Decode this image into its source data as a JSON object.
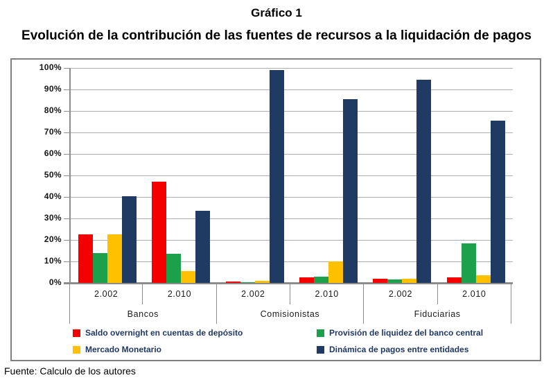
{
  "title": "Gráfico 1",
  "subtitle": "Evolución de la contribución de las fuentes de recursos a la liquidación de pagos",
  "source": "Fuente: Calculo de los autores",
  "colors": {
    "legend_text": "#1F3864",
    "grid": "#AEAEAE",
    "axis": "#8C8C8C",
    "frame_border": "#7F7F7F"
  },
  "chart_data": {
    "type": "bar",
    "title": "Evolución de la contribución de las fuentes de recursos a la liquidación de pagos",
    "xlabel": "",
    "ylabel": "",
    "ylim": [
      0,
      100
    ],
    "ytick_step": 10,
    "ytick_labels": [
      "0%",
      "10%",
      "20%",
      "30%",
      "40%",
      "50%",
      "60%",
      "70%",
      "80%",
      "90%",
      "100%"
    ],
    "grid": true,
    "legend_position": "bottom",
    "categories_level1": [
      "2.002",
      "2.010",
      "2.002",
      "2.010",
      "2.002",
      "2.010"
    ],
    "categories_level2": [
      "Bancos",
      "Comisionistas",
      "Fiduciarias"
    ],
    "series": [
      {
        "id": "saldo_overnight",
        "name": "Saldo overnight en cuentas de depósito",
        "color": "#F40000",
        "values": [
          22.5,
          47,
          0.5,
          2.5,
          2,
          2.5
        ]
      },
      {
        "id": "provision_liquidez",
        "name": "Provisión de liquidez del banco central",
        "color": "#1CA04C",
        "values": [
          14,
          13.5,
          0.2,
          3,
          1.5,
          18.5
        ]
      },
      {
        "id": "mercado_monetario",
        "name": "Mercado Monetario",
        "color": "#FFC000",
        "values": [
          22.5,
          5.5,
          1,
          10,
          2,
          3.5
        ]
      },
      {
        "id": "dinamica_pagos",
        "name": "Dinámica de pagos entre entidades",
        "color": "#1F3A63",
        "values": [
          40.5,
          33.5,
          99,
          85.5,
          94.5,
          75.5
        ]
      }
    ]
  }
}
